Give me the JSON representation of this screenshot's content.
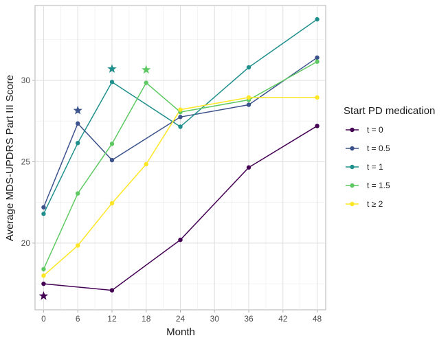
{
  "chart_data": {
    "type": "line",
    "xlabel": "Month",
    "ylabel": "Average MDS-UPDRS Part III Score",
    "xlim": [
      -1.5,
      49.5
    ],
    "ylim": [
      15.9,
      34.6
    ],
    "x_ticks": [
      0,
      6,
      12,
      18,
      24,
      30,
      36,
      42,
      48
    ],
    "y_ticks": [
      20,
      25,
      30
    ],
    "grid": true,
    "legend": {
      "title": "Start PD medication",
      "position": "right"
    },
    "x": [
      0,
      12,
      24,
      36,
      48
    ],
    "series": [
      {
        "name": "t = 0",
        "color": "#440154",
        "points": [
          [
            0,
            17.5
          ],
          [
            12,
            17.1
          ],
          [
            24,
            20.2
          ],
          [
            36,
            24.65
          ],
          [
            48,
            27.2
          ]
        ],
        "star": [
          0,
          16.75
        ]
      },
      {
        "name": "t = 0.5",
        "color": "#3b528b",
        "points": [
          [
            0,
            22.2
          ],
          [
            6,
            27.35
          ],
          [
            12,
            25.1
          ],
          [
            24,
            27.75
          ],
          [
            36,
            28.5
          ],
          [
            48,
            31.4
          ]
        ],
        "star": [
          6,
          28.15
        ]
      },
      {
        "name": "t = 1",
        "color": "#21908c",
        "points": [
          [
            0,
            21.8
          ],
          [
            6,
            26.15
          ],
          [
            12,
            29.9
          ],
          [
            24,
            27.15
          ],
          [
            36,
            30.8
          ],
          [
            48,
            33.75
          ]
        ],
        "star": [
          12,
          30.7
        ]
      },
      {
        "name": "t = 1.5",
        "color": "#5ec962",
        "points": [
          [
            0,
            18.4
          ],
          [
            6,
            23.05
          ],
          [
            12,
            26.1
          ],
          [
            18,
            29.85
          ],
          [
            24,
            28.05
          ],
          [
            36,
            28.8
          ],
          [
            48,
            31.15
          ]
        ],
        "star": [
          18,
          30.65
        ]
      },
      {
        "name": "t ≥ 2",
        "color": "#fde725",
        "points": [
          [
            0,
            18.0
          ],
          [
            6,
            19.85
          ],
          [
            12,
            22.45
          ],
          [
            18,
            24.85
          ],
          [
            24,
            28.2
          ],
          [
            36,
            28.95
          ],
          [
            48,
            28.95
          ]
        ]
      }
    ]
  }
}
